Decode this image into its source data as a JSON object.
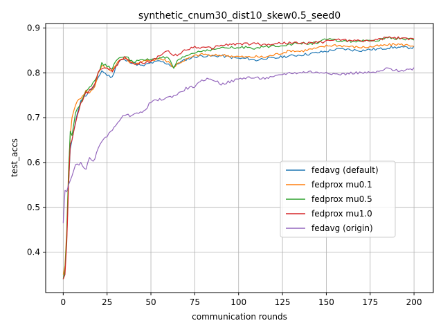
{
  "chart_data": {
    "type": "line",
    "title": "synthetic_cnum30_dist10_skew0.5_seed0",
    "xlabel": "communication rounds",
    "ylabel": "test_accs",
    "xlim": [
      -10,
      211
    ],
    "ylim": [
      0.31,
      0.91
    ],
    "xticks": [
      0,
      25,
      50,
      75,
      100,
      125,
      150,
      175,
      200
    ],
    "yticks": [
      0.4,
      0.5,
      0.6,
      0.7,
      0.8,
      0.9
    ],
    "ytick_labels": [
      "0.4",
      "0.5",
      "0.6",
      "0.7",
      "0.8",
      "0.9"
    ],
    "grid": true,
    "legend_position": "center-right",
    "series": [
      {
        "name": "fedavg (default)",
        "color": "#1f77b4",
        "x": [
          0,
          1,
          2,
          3,
          4,
          5,
          7,
          10,
          13,
          15,
          18,
          20,
          22,
          25,
          28,
          30,
          33,
          35,
          38,
          40,
          45,
          50,
          55,
          60,
          63,
          65,
          70,
          75,
          80,
          85,
          90,
          95,
          100,
          105,
          110,
          115,
          120,
          125,
          130,
          135,
          140,
          145,
          150,
          155,
          160,
          165,
          170,
          175,
          180,
          185,
          190,
          195,
          200
        ],
        "y": [
          0.34,
          0.36,
          0.43,
          0.55,
          0.63,
          0.65,
          0.69,
          0.74,
          0.75,
          0.76,
          0.77,
          0.79,
          0.805,
          0.795,
          0.79,
          0.815,
          0.83,
          0.828,
          0.825,
          0.822,
          0.815,
          0.822,
          0.826,
          0.82,
          0.812,
          0.82,
          0.83,
          0.836,
          0.838,
          0.837,
          0.838,
          0.835,
          0.832,
          0.832,
          0.828,
          0.833,
          0.832,
          0.836,
          0.838,
          0.84,
          0.842,
          0.845,
          0.848,
          0.852,
          0.853,
          0.851,
          0.85,
          0.852,
          0.853,
          0.856,
          0.857,
          0.856,
          0.857
        ]
      },
      {
        "name": "fedprox mu0.1",
        "color": "#ff7f0e",
        "x": [
          0,
          1,
          2,
          3,
          4,
          5,
          7,
          10,
          13,
          15,
          18,
          20,
          22,
          25,
          28,
          30,
          33,
          35,
          38,
          40,
          45,
          50,
          55,
          60,
          63,
          65,
          70,
          75,
          80,
          85,
          90,
          95,
          100,
          105,
          110,
          115,
          120,
          125,
          130,
          135,
          140,
          145,
          150,
          155,
          160,
          165,
          170,
          175,
          180,
          185,
          190,
          195,
          200
        ],
        "y": [
          0.35,
          0.37,
          0.45,
          0.58,
          0.66,
          0.7,
          0.73,
          0.745,
          0.76,
          0.755,
          0.77,
          0.8,
          0.815,
          0.81,
          0.805,
          0.82,
          0.83,
          0.832,
          0.825,
          0.82,
          0.825,
          0.828,
          0.832,
          0.825,
          0.812,
          0.82,
          0.83,
          0.838,
          0.842,
          0.838,
          0.84,
          0.838,
          0.836,
          0.835,
          0.836,
          0.835,
          0.84,
          0.845,
          0.85,
          0.848,
          0.852,
          0.855,
          0.86,
          0.862,
          0.86,
          0.858,
          0.857,
          0.858,
          0.86,
          0.862,
          0.864,
          0.862,
          0.861
        ]
      },
      {
        "name": "fedprox mu0.5",
        "color": "#2ca02c",
        "x": [
          0,
          1,
          2,
          3,
          4,
          5,
          7,
          10,
          13,
          15,
          18,
          20,
          22,
          25,
          28,
          30,
          33,
          35,
          38,
          40,
          45,
          50,
          55,
          60,
          63,
          65,
          70,
          75,
          80,
          85,
          90,
          95,
          100,
          105,
          110,
          115,
          120,
          125,
          130,
          135,
          140,
          145,
          150,
          155,
          160,
          165,
          170,
          175,
          180,
          185,
          190,
          195,
          200
        ],
        "y": [
          0.34,
          0.36,
          0.44,
          0.57,
          0.67,
          0.66,
          0.71,
          0.735,
          0.76,
          0.77,
          0.78,
          0.8,
          0.82,
          0.815,
          0.81,
          0.825,
          0.835,
          0.838,
          0.83,
          0.825,
          0.828,
          0.83,
          0.835,
          0.832,
          0.81,
          0.825,
          0.838,
          0.845,
          0.85,
          0.852,
          0.855,
          0.856,
          0.855,
          0.858,
          0.855,
          0.858,
          0.86,
          0.862,
          0.864,
          0.866,
          0.865,
          0.868,
          0.875,
          0.872,
          0.871,
          0.87,
          0.871,
          0.87,
          0.873,
          0.878,
          0.877,
          0.875,
          0.874
        ]
      },
      {
        "name": "fedprox mu1.0",
        "color": "#d62728",
        "x": [
          0,
          1,
          2,
          3,
          4,
          5,
          7,
          10,
          13,
          15,
          18,
          20,
          22,
          25,
          28,
          30,
          33,
          35,
          38,
          40,
          45,
          50,
          55,
          60,
          63,
          65,
          70,
          75,
          80,
          85,
          90,
          95,
          100,
          105,
          110,
          115,
          120,
          125,
          130,
          135,
          140,
          145,
          150,
          155,
          160,
          165,
          170,
          175,
          180,
          185,
          190,
          195,
          200
        ],
        "y": [
          0.34,
          0.35,
          0.42,
          0.54,
          0.64,
          0.65,
          0.69,
          0.73,
          0.755,
          0.76,
          0.775,
          0.8,
          0.81,
          0.81,
          0.805,
          0.815,
          0.83,
          0.835,
          0.828,
          0.82,
          0.823,
          0.825,
          0.84,
          0.848,
          0.838,
          0.84,
          0.852,
          0.858,
          0.856,
          0.855,
          0.862,
          0.863,
          0.865,
          0.864,
          0.866,
          0.862,
          0.865,
          0.866,
          0.868,
          0.865,
          0.866,
          0.868,
          0.87,
          0.875,
          0.873,
          0.872,
          0.871,
          0.872,
          0.874,
          0.879,
          0.878,
          0.876,
          0.875
        ]
      },
      {
        "name": "fedavg (origin)",
        "color": "#9467bd",
        "x": [
          0,
          1,
          2,
          3,
          5,
          7,
          10,
          13,
          15,
          17,
          20,
          23,
          25,
          28,
          30,
          33,
          35,
          38,
          40,
          45,
          50,
          55,
          60,
          65,
          70,
          75,
          78,
          80,
          85,
          90,
          95,
          100,
          105,
          110,
          115,
          120,
          125,
          130,
          135,
          140,
          145,
          150,
          155,
          160,
          165,
          170,
          175,
          180,
          185,
          190,
          195,
          200
        ],
        "y": [
          0.465,
          0.538,
          0.535,
          0.55,
          0.57,
          0.595,
          0.598,
          0.585,
          0.61,
          0.6,
          0.63,
          0.655,
          0.66,
          0.67,
          0.685,
          0.7,
          0.705,
          0.705,
          0.71,
          0.71,
          0.735,
          0.74,
          0.745,
          0.752,
          0.765,
          0.77,
          0.778,
          0.785,
          0.786,
          0.775,
          0.78,
          0.786,
          0.79,
          0.788,
          0.788,
          0.79,
          0.797,
          0.8,
          0.8,
          0.803,
          0.8,
          0.802,
          0.797,
          0.797,
          0.8,
          0.8,
          0.8,
          0.802,
          0.81,
          0.805,
          0.806,
          0.81
        ]
      }
    ]
  }
}
